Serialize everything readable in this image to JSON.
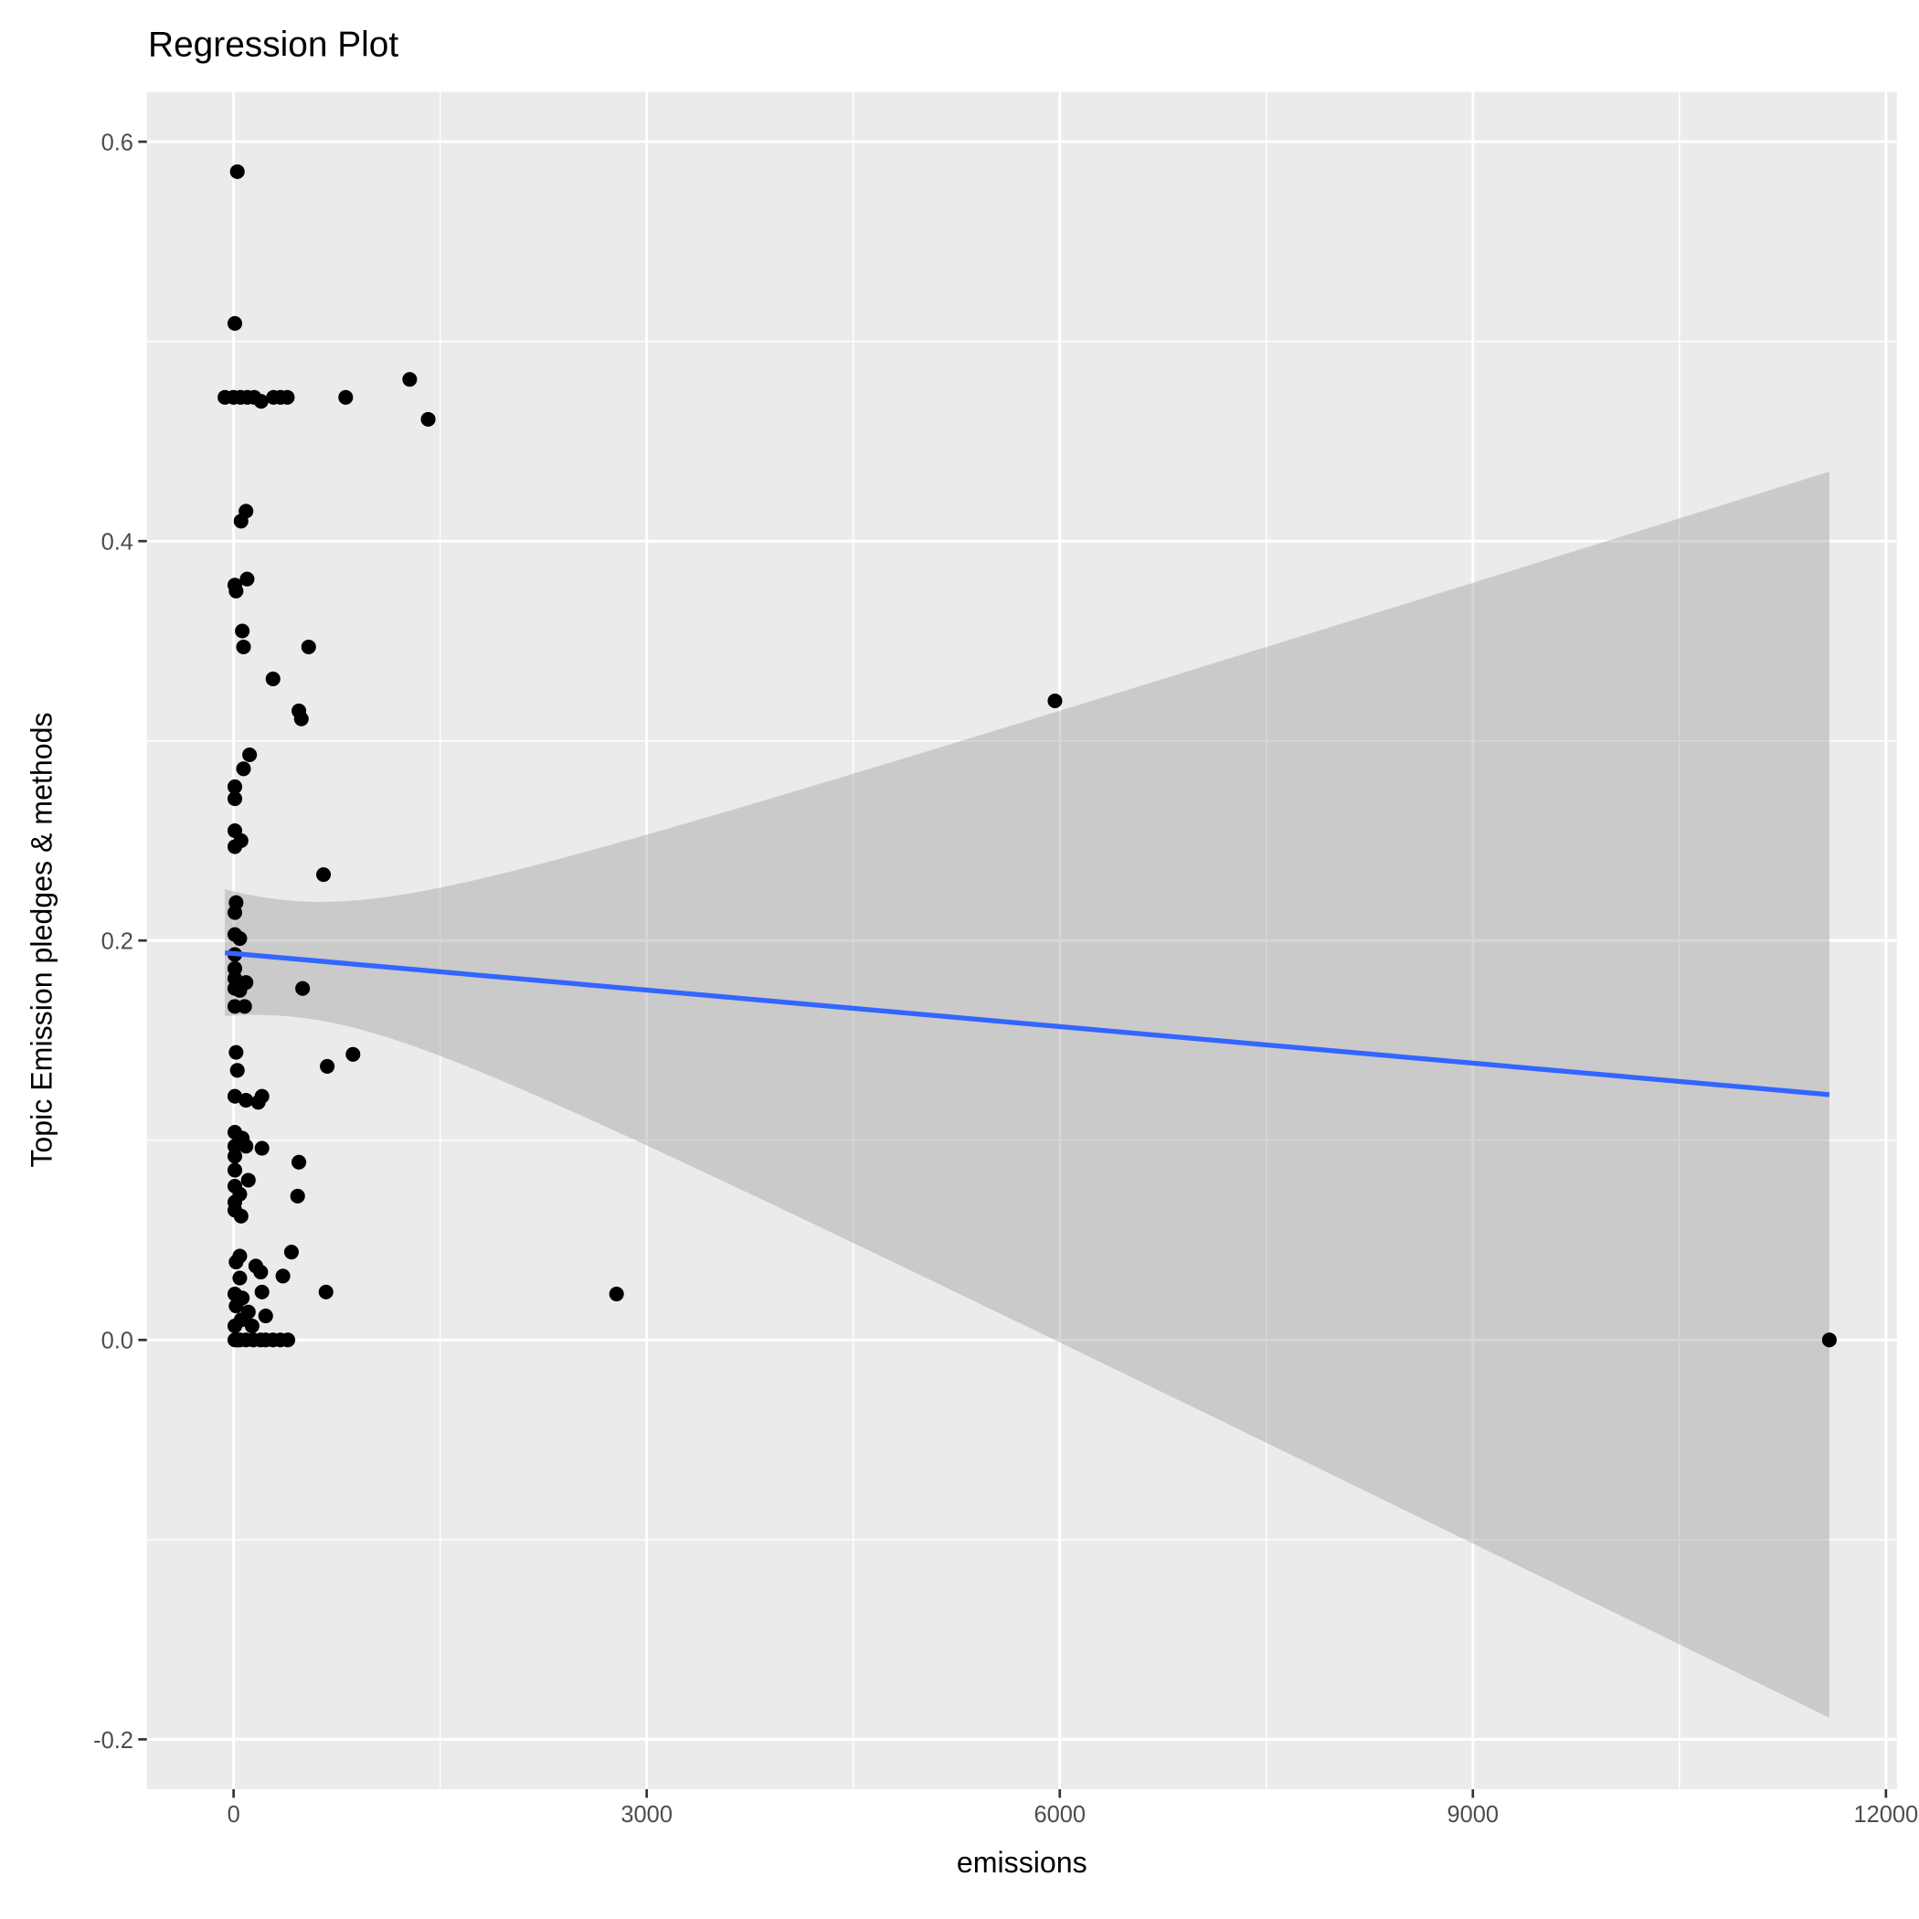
{
  "chart_data": {
    "type": "scatter",
    "title": "Regression Plot",
    "xlabel": "emissions",
    "ylabel": "Topic Emission pledges & methods",
    "xlim": [
      -630,
      12080
    ],
    "ylim": [
      -0.225,
      0.625
    ],
    "x_ticks": [
      0,
      3000,
      6000,
      9000,
      12000
    ],
    "x_tick_labels": [
      "0",
      "3000",
      "6000",
      "9000",
      "12000"
    ],
    "x_minor": [
      1500,
      4500,
      7500,
      10500
    ],
    "y_ticks": [
      -0.2,
      0,
      0.2,
      0.4,
      0.6
    ],
    "y_tick_labels": [
      "-0.2",
      "0.0",
      "0.2",
      "0.4",
      "0.6"
    ],
    "y_minor": [
      -0.1,
      0.1,
      0.3,
      0.5
    ],
    "grid": true,
    "colors": {
      "panel": "#ebebeb",
      "grid": "#ffffff",
      "points": "#000000",
      "line": "#3366ff",
      "band": "#999999"
    },
    "regression": {
      "x_range": [
        -63,
        11589
      ],
      "intercept": 0.1935,
      "slope": -6.1e-06
    },
    "confidence_band": {
      "center_x": 400,
      "halfwidth_min": 0.029,
      "halfwidth_at_xmax": 0.312
    },
    "points": [
      [
        27,
        0.585
      ],
      [
        9,
        0.509
      ],
      [
        -63,
        0.472
      ],
      [
        0,
        0.472
      ],
      [
        50,
        0.472
      ],
      [
        100,
        0.472
      ],
      [
        150,
        0.472
      ],
      [
        200,
        0.47
      ],
      [
        290,
        0.472
      ],
      [
        340,
        0.472
      ],
      [
        390,
        0.472
      ],
      [
        814,
        0.472
      ],
      [
        1279,
        0.481
      ],
      [
        1413,
        0.461
      ],
      [
        90,
        0.415
      ],
      [
        54,
        0.41
      ],
      [
        98,
        0.381
      ],
      [
        9,
        0.378
      ],
      [
        18,
        0.375
      ],
      [
        63,
        0.355
      ],
      [
        72,
        0.347
      ],
      [
        545,
        0.347
      ],
      [
        286,
        0.331
      ],
      [
        474,
        0.315
      ],
      [
        492,
        0.311
      ],
      [
        5965,
        0.32
      ],
      [
        116,
        0.293
      ],
      [
        72,
        0.286
      ],
      [
        9,
        0.277
      ],
      [
        9,
        0.271
      ],
      [
        9,
        0.255
      ],
      [
        54,
        0.25
      ],
      [
        9,
        0.247
      ],
      [
        653,
        0.233
      ],
      [
        18,
        0.219
      ],
      [
        9,
        0.214
      ],
      [
        9,
        0.203
      ],
      [
        45,
        0.201
      ],
      [
        9,
        0.193
      ],
      [
        9,
        0.186
      ],
      [
        9,
        0.181
      ],
      [
        90,
        0.179
      ],
      [
        9,
        0.176
      ],
      [
        501,
        0.176
      ],
      [
        45,
        0.175
      ],
      [
        9,
        0.167
      ],
      [
        80,
        0.167
      ],
      [
        18,
        0.144
      ],
      [
        867,
        0.143
      ],
      [
        680,
        0.137
      ],
      [
        27,
        0.135
      ],
      [
        9,
        0.122
      ],
      [
        206,
        0.122
      ],
      [
        90,
        0.12
      ],
      [
        179,
        0.119
      ],
      [
        9,
        0.104
      ],
      [
        63,
        0.101
      ],
      [
        9,
        0.097
      ],
      [
        90,
        0.097
      ],
      [
        206,
        0.096
      ],
      [
        9,
        0.092
      ],
      [
        474,
        0.089
      ],
      [
        9,
        0.085
      ],
      [
        107,
        0.08
      ],
      [
        9,
        0.077
      ],
      [
        45,
        0.073
      ],
      [
        465,
        0.072
      ],
      [
        9,
        0.069
      ],
      [
        9,
        0.065
      ],
      [
        54,
        0.062
      ],
      [
        420,
        0.044
      ],
      [
        45,
        0.042
      ],
      [
        18,
        0.039
      ],
      [
        161,
        0.037
      ],
      [
        197,
        0.034
      ],
      [
        358,
        0.032
      ],
      [
        45,
        0.031
      ],
      [
        671,
        0.024
      ],
      [
        206,
        0.024
      ],
      [
        2781,
        0.023
      ],
      [
        9,
        0.023
      ],
      [
        63,
        0.021
      ],
      [
        18,
        0.017
      ],
      [
        107,
        0.014
      ],
      [
        233,
        0.012
      ],
      [
        54,
        0.01
      ],
      [
        9,
        0.007
      ],
      [
        134,
        0.007
      ],
      [
        9,
        0
      ],
      [
        27,
        0
      ],
      [
        45,
        0
      ],
      [
        90,
        0
      ],
      [
        143,
        0
      ],
      [
        197,
        0
      ],
      [
        233,
        0
      ],
      [
        286,
        0
      ],
      [
        340,
        0
      ],
      [
        394,
        0
      ],
      [
        11589,
        0
      ]
    ]
  }
}
